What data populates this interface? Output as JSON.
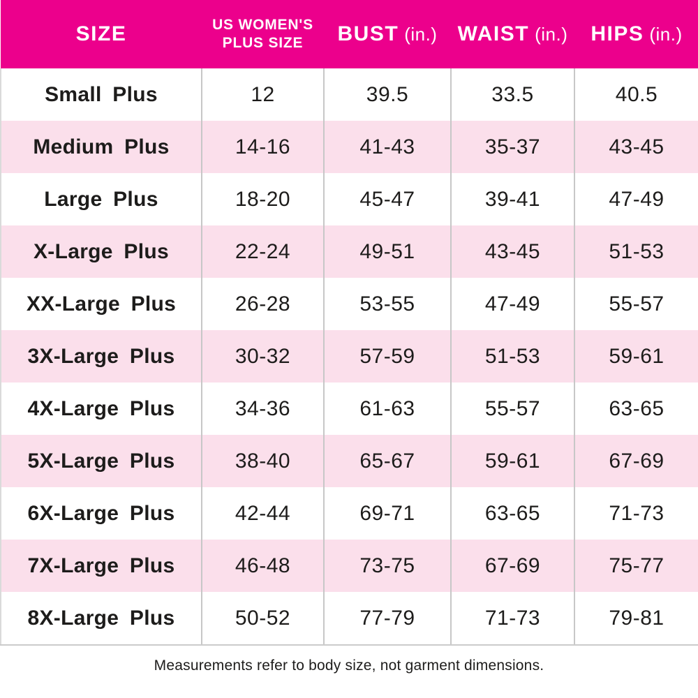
{
  "colors": {
    "header_bg": "#EC008C",
    "header_text": "#FFFFFF",
    "row_alt_bg": "#FBDFEB",
    "row_bg": "#FFFFFF",
    "grid_line": "#C7C7C7",
    "outer_border": "#CFCFCF",
    "body_text": "#1D1C1B"
  },
  "chart_data": {
    "type": "table",
    "title": "",
    "columns": [
      {
        "label": "SIZE",
        "unit": ""
      },
      {
        "label": "US WOMEN'S PLUS SIZE",
        "unit": ""
      },
      {
        "label": "BUST",
        "unit": "(in.)"
      },
      {
        "label": "WAIST",
        "unit": "(in.)"
      },
      {
        "label": "HIPS",
        "unit": "(in.)"
      }
    ],
    "rows": [
      [
        "Small Plus",
        "12",
        "39.5",
        "33.5",
        "40.5"
      ],
      [
        "Medium Plus",
        "14-16",
        "41-43",
        "35-37",
        "43-45"
      ],
      [
        "Large Plus",
        "18-20",
        "45-47",
        "39-41",
        "47-49"
      ],
      [
        "X-Large Plus",
        "22-24",
        "49-51",
        "43-45",
        "51-53"
      ],
      [
        "XX-Large Plus",
        "26-28",
        "53-55",
        "47-49",
        "55-57"
      ],
      [
        "3X-Large Plus",
        "30-32",
        "57-59",
        "51-53",
        "59-61"
      ],
      [
        "4X-Large Plus",
        "34-36",
        "61-63",
        "55-57",
        "63-65"
      ],
      [
        "5X-Large Plus",
        "38-40",
        "65-67",
        "59-61",
        "67-69"
      ],
      [
        "6X-Large Plus",
        "42-44",
        "69-71",
        "63-65",
        "71-73"
      ],
      [
        "7X-Large Plus",
        "46-48",
        "73-75",
        "67-69",
        "75-77"
      ],
      [
        "8X-Large Plus",
        "50-52",
        "77-79",
        "71-73",
        "79-81"
      ]
    ],
    "row_striping": "odd rows white, even rows light pink",
    "footnote": "Measurements refer to body size, not garment dimensions."
  }
}
